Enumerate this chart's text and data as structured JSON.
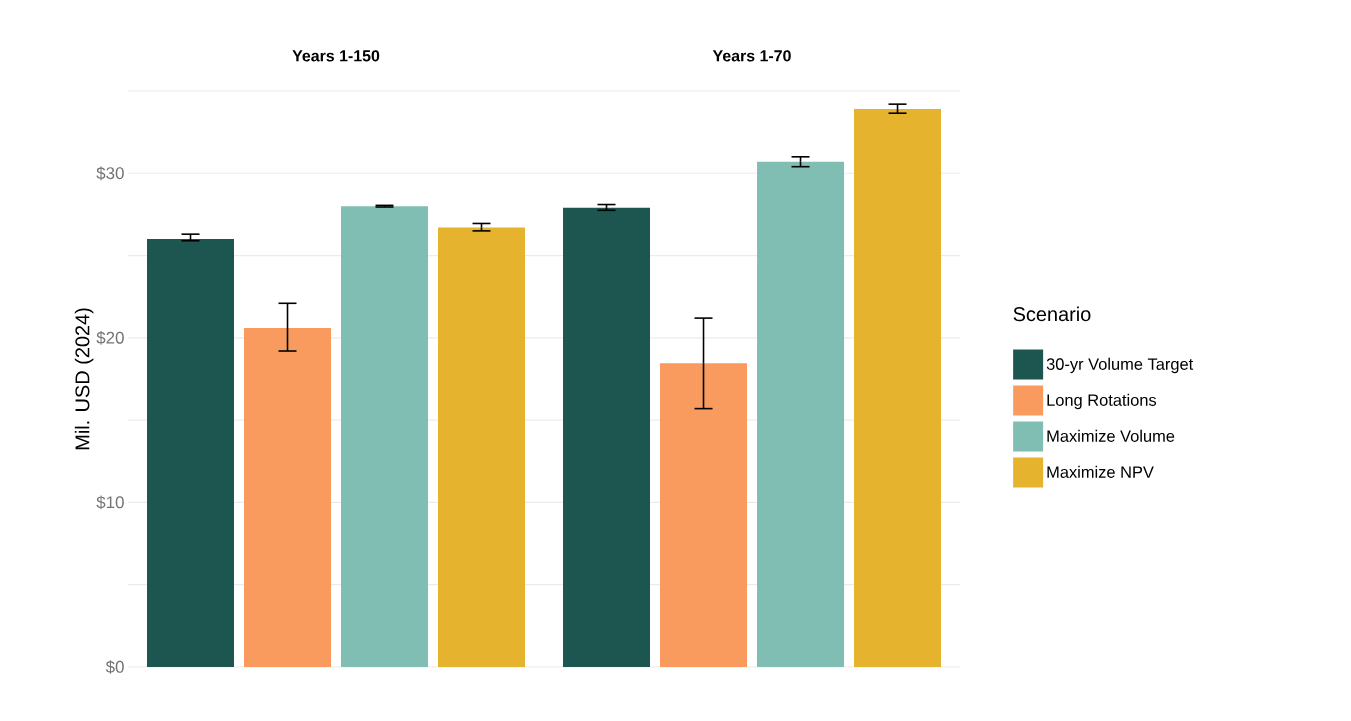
{
  "chart_data": {
    "type": "bar",
    "ylabel": "Mil. USD (2024)",
    "legend_title": "Scenario",
    "categories": [
      "Years 1-150",
      "Years 1-70"
    ],
    "series": [
      {
        "name": "30-yr Volume Target",
        "color": "#1d5550",
        "values": [
          26.0,
          27.9
        ],
        "errors": [
          [
            25.9,
            26.3
          ],
          [
            27.75,
            28.1
          ]
        ]
      },
      {
        "name": "Long Rotations",
        "color": "#f99a5f",
        "values": [
          20.6,
          18.45
        ],
        "errors": [
          [
            19.2,
            22.1
          ],
          [
            15.7,
            21.2
          ]
        ]
      },
      {
        "name": "Maximize Volume",
        "color": "#80beb4",
        "values": [
          28.0,
          30.7
        ],
        "errors": [
          [
            27.95,
            28.05
          ],
          [
            30.4,
            31.0
          ]
        ]
      },
      {
        "name": "Maximize NPV",
        "color": "#e6b32f",
        "values": [
          26.7,
          33.9
        ],
        "errors": [
          [
            26.5,
            26.95
          ],
          [
            33.65,
            34.2
          ]
        ]
      }
    ],
    "ylim": [
      0,
      35
    ],
    "yticks": [
      {
        "value": 0,
        "label": "$0"
      },
      {
        "value": 5,
        "label": null
      },
      {
        "value": 10,
        "label": "$10"
      },
      {
        "value": 15,
        "label": null
      },
      {
        "value": 20,
        "label": "$20"
      },
      {
        "value": 25,
        "label": null
      },
      {
        "value": 30,
        "label": "$30"
      },
      {
        "value": 35,
        "label": null
      }
    ],
    "grid": "y",
    "legend": "right"
  }
}
